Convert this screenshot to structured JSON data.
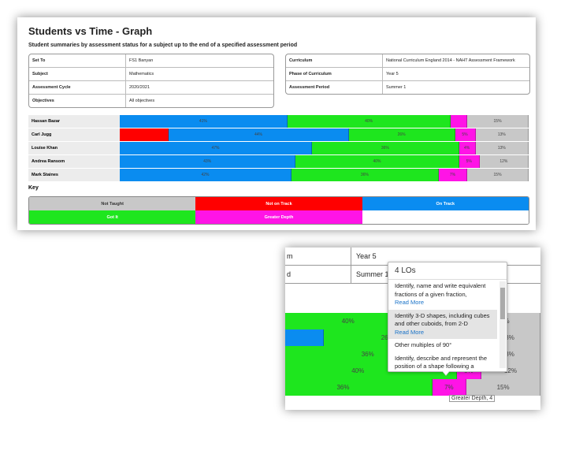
{
  "header": {
    "title": "Students vs Time - Graph",
    "subtitle": "Student summaries by assessment status for a subject up to the end of a specified assessment period"
  },
  "details_left": [
    [
      "Set To",
      "FS1 Banyan"
    ],
    [
      "Subject",
      "Mathematics"
    ],
    [
      "Assessment Cycle",
      "2020/2021"
    ],
    [
      "Objectives",
      "All objectives"
    ]
  ],
  "details_right": [
    [
      "Curriculum",
      "National Curriculum England 2014 - NAHT Assessment Framework"
    ],
    [
      "Phase of Curriculum",
      "Year 5"
    ],
    [
      "Assessment Period",
      "Summer 1"
    ]
  ],
  "key": {
    "title": "Key",
    "statuses": [
      {
        "name": "Not Taught",
        "color": "#c8c8c8"
      },
      {
        "name": "Not on Track",
        "color": "#ff0000"
      },
      {
        "name": "On Track",
        "color": "#0a8cf0"
      },
      {
        "name": "Got It",
        "color": "#1ee61e"
      },
      {
        "name": "Greater Depth",
        "color": "#ff14e6"
      }
    ]
  },
  "students": [
    {
      "name": "Hassan Bazar",
      "values": [
        15,
        0,
        41,
        40,
        4
      ],
      "value_labels": [
        "15%",
        null,
        "41%",
        "40%",
        null
      ]
    },
    {
      "name": "Carl Jugg",
      "values": [
        13,
        12,
        44,
        26,
        5
      ],
      "value_labels": [
        "13%",
        null,
        "44%",
        "26%",
        "5%"
      ]
    },
    {
      "name": "Louise Khan",
      "values": [
        13,
        0,
        47,
        36,
        4
      ],
      "value_labels": [
        "13%",
        null,
        "47%",
        "36%",
        "4%"
      ]
    },
    {
      "name": "Andrea Ransom",
      "values": [
        12,
        0,
        43,
        40,
        5
      ],
      "value_labels": [
        "12%",
        null,
        "43%",
        "40%",
        "5%"
      ]
    },
    {
      "name": "Mark Staines",
      "values": [
        15,
        0,
        42,
        36,
        7
      ],
      "value_labels": [
        "15%",
        null,
        "42%",
        "36%",
        "7%"
      ]
    }
  ],
  "zoom": {
    "rows": [
      [
        "m",
        "Year 5"
      ],
      [
        "d",
        "Summer 1"
      ]
    ],
    "tooltip": {
      "title": "4 LOs",
      "items": [
        {
          "text": "Identify, name and write equivalent fractions of a given fraction,",
          "link": "Read More"
        },
        {
          "text": "Identify 3-D shapes, including cubes and other cuboids, from 2-D",
          "link": "Read More"
        },
        {
          "text": "Other multiples of 90°"
        },
        {
          "text": "Identify, describe and represent the position of a shape following a",
          "link": "Read More"
        }
      ]
    },
    "hover_label": "Greater Depth, 4"
  }
}
